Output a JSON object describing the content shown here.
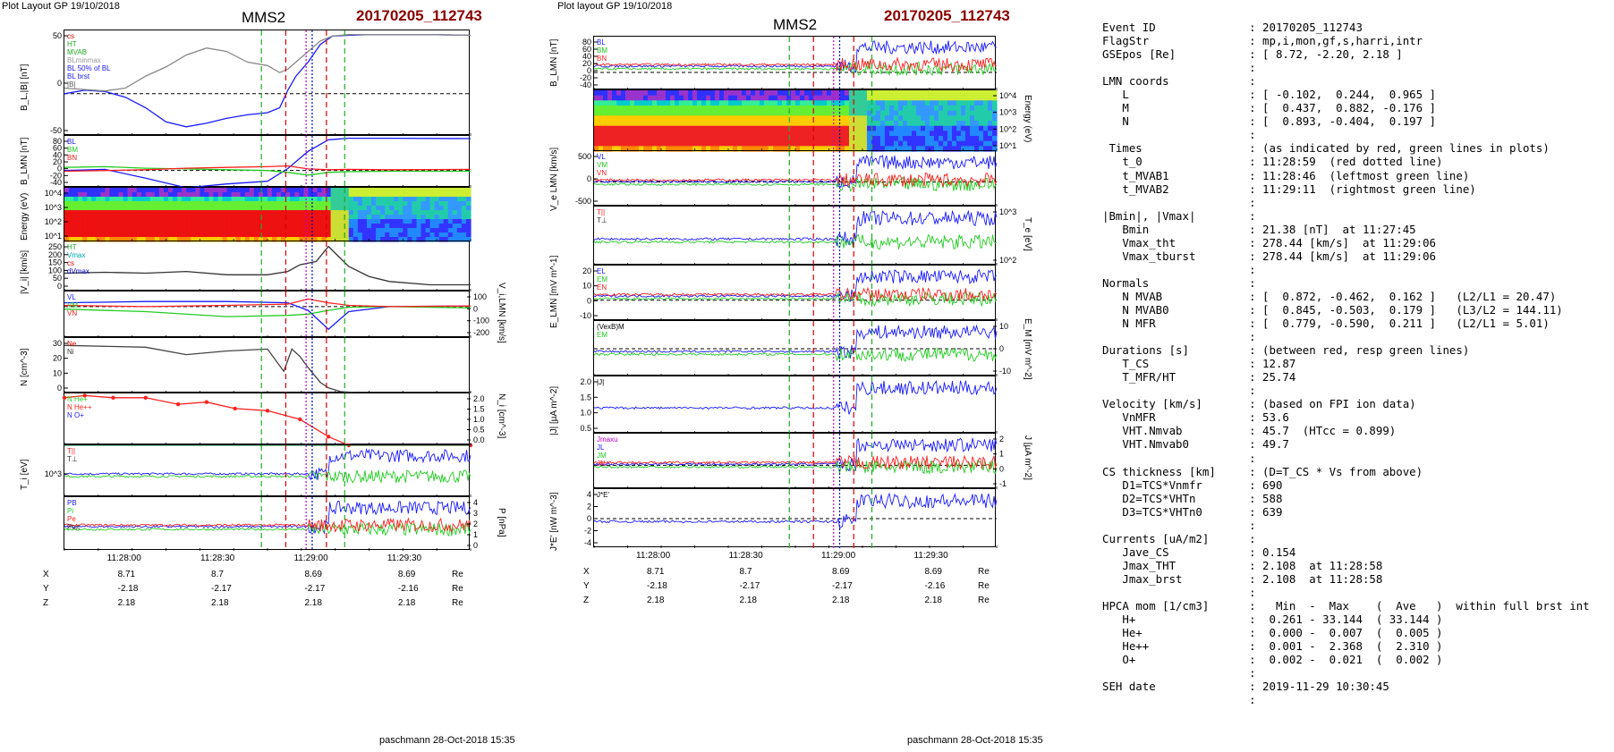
{
  "left": {
    "header": "Plot Layout GP 19/10/2018",
    "title": "MMS2",
    "event": "20170205_112743",
    "footer": "paschmann 28-Oct-2018 15:35",
    "xticks": [
      "11:28:00",
      "11:28:30",
      "11:29:00",
      "11:29:30"
    ],
    "ephem": {
      "rows": [
        {
          "label": "X",
          "values": [
            "8.71",
            "8.7",
            "8.69",
            "8.69"
          ],
          "unit": "Re"
        },
        {
          "label": "Y",
          "values": [
            "-2.18",
            "-2.17",
            "-2.17",
            "-2.16"
          ],
          "unit": "Re"
        },
        {
          "label": "Z",
          "values": [
            "2.18",
            "2.18",
            "2.18",
            "2.18"
          ],
          "unit": "Re"
        }
      ]
    }
  },
  "right": {
    "header": "Plot layout GP 19/10/2018",
    "title": "MMS2",
    "event": "20170205_112743",
    "footer": "paschmann 28-Oct-2018 15:35",
    "xticks": [
      "11:28:00",
      "11:28:30",
      "11:29:00",
      "11:29:30"
    ],
    "ephem": {
      "rows": [
        {
          "label": "X",
          "values": [
            "8.71",
            "8.7",
            "8.69",
            "8.69"
          ],
          "unit": "Re"
        },
        {
          "label": "Y",
          "values": [
            "-2.18",
            "-2.17",
            "-2.17",
            "-2.16"
          ],
          "unit": "Re"
        },
        {
          "label": "Z",
          "values": [
            "2.18",
            "2.18",
            "2.18",
            "2.18"
          ],
          "unit": "Re"
        }
      ]
    }
  },
  "chart_data": [
    {
      "type": "line",
      "panel": "left-1",
      "ylabel": "B_L,|B| [nT]",
      "ylim": [
        -60,
        90
      ],
      "yticks": [
        "50",
        "0",
        "-50"
      ],
      "legend": [
        "cs",
        "HT",
        "MVAB",
        "BLminmax",
        "BL 50% of BL",
        "BL brst",
        "|B|"
      ],
      "series": [
        {
          "name": "BL brst",
          "color": "#1a1aff",
          "x": [
            0,
            0.05,
            0.1,
            0.15,
            0.2,
            0.25,
            0.3,
            0.35,
            0.4,
            0.45,
            0.5,
            0.53,
            0.55,
            0.57,
            0.6,
            0.63,
            0.66,
            0.7,
            0.75,
            0.8,
            0.9,
            1.0
          ],
          "values": [
            0,
            5,
            3,
            -5,
            -20,
            -40,
            -47,
            -42,
            -35,
            -30,
            -27,
            -20,
            5,
            25,
            45,
            70,
            82,
            83,
            84,
            84,
            84,
            83
          ]
        },
        {
          "name": "|B|",
          "color": "#888888",
          "x": [
            0,
            0.05,
            0.1,
            0.15,
            0.2,
            0.25,
            0.3,
            0.35,
            0.4,
            0.45,
            0.5,
            0.53,
            0.55,
            0.57,
            0.6,
            0.63,
            0.66,
            0.7,
            0.75,
            0.8,
            0.9,
            1.0
          ],
          "values": [
            8,
            6,
            4,
            8,
            25,
            38,
            55,
            65,
            60,
            45,
            40,
            30,
            35,
            45,
            60,
            75,
            82,
            84,
            84,
            84,
            84,
            83
          ]
        }
      ]
    },
    {
      "type": "line",
      "panel": "left-2",
      "ylabel": "B_LMN [nT]",
      "ylim": [
        -45,
        90
      ],
      "yticks": [
        "80",
        "60",
        "40",
        "20",
        "0",
        "-20",
        "-40"
      ],
      "legend": [
        "BL",
        "BM",
        "BN"
      ],
      "series": [
        {
          "name": "BL",
          "color": "#1a1aff",
          "x": [
            0,
            0.1,
            0.2,
            0.3,
            0.4,
            0.5,
            0.55,
            0.6,
            0.65,
            0.7,
            0.8,
            1.0
          ],
          "values": [
            0,
            3,
            -20,
            -45,
            -35,
            -28,
            5,
            50,
            80,
            84,
            84,
            83
          ]
        },
        {
          "name": "BM",
          "color": "#22cc22",
          "x": [
            0,
            0.1,
            0.2,
            0.3,
            0.4,
            0.5,
            0.55,
            0.6,
            0.65,
            0.7,
            0.8,
            1.0
          ],
          "values": [
            8,
            10,
            6,
            4,
            2,
            0,
            -5,
            -12,
            -5,
            -3,
            -2,
            -2
          ]
        },
        {
          "name": "BN",
          "color": "#ff2020",
          "x": [
            0,
            0.1,
            0.2,
            0.3,
            0.4,
            0.5,
            0.55,
            0.6,
            0.65,
            0.7,
            0.8,
            1.0
          ],
          "values": [
            -2,
            0,
            2,
            6,
            8,
            10,
            12,
            4,
            2,
            3,
            2,
            3
          ]
        }
      ]
    },
    {
      "type": "heatmap",
      "panel": "left-3",
      "ylabel": "Energy (eV)",
      "yticks": [
        "10^4",
        "10^3",
        "10^2",
        "10^1"
      ]
    },
    {
      "type": "line",
      "panel": "left-4",
      "ylabel": "|V_i| [km/s]",
      "ylim": [
        0,
        300
      ],
      "yticks": [
        "250",
        "200",
        "150",
        "100",
        "50",
        "0"
      ],
      "legend": [
        "HT",
        "Vmax",
        "cs",
        "dVmax"
      ],
      "series": [
        {
          "name": "|Vi|",
          "color": "#333333",
          "x": [
            0,
            0.1,
            0.2,
            0.3,
            0.4,
            0.5,
            0.55,
            0.58,
            0.62,
            0.65,
            0.7,
            0.75,
            0.8,
            0.9,
            1.0
          ],
          "values": [
            110,
            115,
            110,
            120,
            100,
            100,
            120,
            160,
            180,
            270,
            150,
            90,
            60,
            40,
            40
          ]
        }
      ]
    },
    {
      "type": "line",
      "panel": "left-5",
      "ylabel": "V_i,LMN [km/s]",
      "ylim": [
        -250,
        120
      ],
      "yticks": [
        "100",
        "0",
        "-100",
        "-200"
      ],
      "legend": [
        "VL",
        "VM",
        "VN"
      ],
      "series": [
        {
          "name": "VL",
          "color": "#1a1aff",
          "x": [
            0,
            0.2,
            0.4,
            0.55,
            0.6,
            0.65,
            0.7,
            0.8,
            1.0
          ],
          "values": [
            30,
            40,
            40,
            30,
            -30,
            -180,
            -40,
            0,
            5
          ]
        },
        {
          "name": "VM",
          "color": "#22cc22",
          "x": [
            0,
            0.2,
            0.4,
            0.55,
            0.6,
            0.65,
            0.7,
            0.8,
            1.0
          ],
          "values": [
            -20,
            -40,
            -80,
            -70,
            -60,
            -30,
            -5,
            0,
            -10
          ]
        },
        {
          "name": "VN",
          "color": "#ff2020",
          "x": [
            0,
            0.2,
            0.4,
            0.55,
            0.6,
            0.65,
            0.7,
            0.8,
            1.0
          ],
          "values": [
            10,
            0,
            10,
            20,
            60,
            30,
            10,
            0,
            5
          ]
        }
      ]
    },
    {
      "type": "line",
      "panel": "left-6",
      "ylabel": "N [cm^-3]",
      "ylim": [
        0,
        30
      ],
      "yticks": [
        "30",
        "20",
        "10",
        "0"
      ],
      "legend": [
        "Ne",
        "Ni"
      ],
      "series": [
        {
          "name": "Ni",
          "color": "#444444",
          "x": [
            0,
            0.2,
            0.3,
            0.4,
            0.5,
            0.54,
            0.56,
            0.58,
            0.6,
            0.63,
            0.65,
            0.68,
            0.72,
            1.0
          ],
          "values": [
            26,
            25,
            21,
            23,
            24,
            12,
            24,
            20,
            14,
            6,
            3,
            1,
            0.5,
            0.5
          ]
        }
      ]
    },
    {
      "type": "line",
      "panel": "left-7",
      "ylabel": "N_i [cm^-3]",
      "ylim": [
        0,
        2.4
      ],
      "yticks": [
        "2.0",
        "1.5",
        "1.0",
        "0.5",
        "0.0"
      ],
      "legend": [
        "N He+",
        "N He++",
        "N O+"
      ],
      "series": [
        {
          "name": "N He++",
          "color": "#ff2020",
          "x": [
            0,
            0.05,
            0.12,
            0.2,
            0.28,
            0.35,
            0.42,
            0.5,
            0.58,
            0.65,
            0.7,
            1.0
          ],
          "values": [
            2.2,
            2.3,
            2.2,
            2.2,
            1.9,
            2.0,
            1.7,
            1.6,
            1.2,
            0.4,
            0,
            0
          ]
        },
        {
          "name": "N He+",
          "color": "#22cc22",
          "x": [
            0,
            1.0
          ],
          "values": [
            0.01,
            0.01
          ]
        },
        {
          "name": "N O+",
          "color": "#1a1aff",
          "x": [
            0,
            1.0
          ],
          "values": [
            0.02,
            0.02
          ]
        }
      ]
    },
    {
      "type": "line",
      "panel": "left-8",
      "ylabel": "T_i [eV]",
      "yticks": [
        "10^3"
      ],
      "legend": [
        "T||",
        "T⊥"
      ]
    },
    {
      "type": "line",
      "panel": "left-9",
      "ylabel": "P [nPa]",
      "ylim": [
        0,
        4
      ],
      "yticks": [
        "4",
        "3",
        "2",
        "1",
        "0"
      ],
      "legend": [
        "PB",
        "Pi",
        "Pe",
        "Ptot"
      ]
    },
    {
      "type": "line",
      "panel": "right-1",
      "ylabel": "B_LMN [nT]",
      "ylim": [
        -45,
        90
      ],
      "yticks": [
        "80",
        "60",
        "40",
        "20",
        "0",
        "-20",
        "-40"
      ],
      "legend": [
        "BL",
        "BM",
        "BN"
      ]
    },
    {
      "type": "heatmap",
      "panel": "right-2",
      "ylabel": "Energy (eV)",
      "yticks": [
        "10^4",
        "10^3",
        "10^2",
        "10^1"
      ]
    },
    {
      "type": "line",
      "panel": "right-3",
      "ylabel": "V_e LMN [km/s]",
      "ylim": [
        -800,
        1000
      ],
      "yticks": [
        "500",
        "0",
        "-500"
      ],
      "legend": [
        "VL",
        "VM",
        "VN"
      ]
    },
    {
      "type": "line",
      "panel": "right-4",
      "ylabel": "T_e [eV]",
      "yticks": [
        "10^3",
        "10^2"
      ],
      "legend": [
        "T||",
        "T⊥"
      ]
    },
    {
      "type": "line",
      "panel": "right-5",
      "ylabel": "E_LMN [mV m^-1]",
      "ylim": [
        -15,
        25
      ],
      "yticks": [
        "20",
        "10",
        "0",
        "-10"
      ],
      "legend": [
        "EL",
        "EM",
        "EN"
      ]
    },
    {
      "type": "line",
      "panel": "right-6",
      "ylabel": "E_M [mV m^-2]",
      "ylim": [
        -15,
        15
      ],
      "yticks": [
        "10",
        "0",
        "-10"
      ],
      "legend": [
        "(VexB)M",
        "EM"
      ]
    },
    {
      "type": "line",
      "panel": "right-7",
      "ylabel": "|J| [µA m^-2]",
      "ylim": [
        0,
        2.0
      ],
      "yticks": [
        "2.0",
        "1.5",
        "1.0",
        "0.5"
      ],
      "legend": [
        "|J|"
      ]
    },
    {
      "type": "line",
      "panel": "right-8",
      "ylabel": "J [µA m^-2]",
      "ylim": [
        -1.5,
        2
      ],
      "yticks": [
        "2",
        "1",
        "0",
        "-1"
      ],
      "legend": [
        "Jmaxu",
        "JL",
        "JM",
        "JN"
      ]
    },
    {
      "type": "line",
      "panel": "right-9",
      "ylabel": "J*E' [nW m^-3]",
      "ylim": [
        -5,
        5
      ],
      "yticks": [
        "4",
        "2",
        "0",
        "-2",
        "-4"
      ],
      "legend": [
        "J*E'"
      ]
    }
  ],
  "info_rows": [
    [
      "Event ID",
      ": 20170205_112743"
    ],
    [
      "FlagStr",
      ": mp,i,mon,gf,s,harri,intr"
    ],
    [
      "GSEpos [Re]",
      ": [ 8.72, -2.20, 2.18 ]"
    ],
    [
      "",
      ":"
    ],
    [
      "LMN coords",
      ":"
    ],
    [
      "   L",
      ": [ -0.102,  0.244,  0.965 ]"
    ],
    [
      "   M",
      ": [  0.437,  0.882, -0.176 ]"
    ],
    [
      "   N",
      ": [  0.893, -0.404,  0.197 ]"
    ],
    [
      "",
      ":"
    ],
    [
      " Times",
      ": (as indicated by red, green lines in plots)"
    ],
    [
      "   t_0",
      ": 11:28:59  (red dotted line)"
    ],
    [
      "   t_MVAB1",
      ": 11:28:46  (leftmost green line)"
    ],
    [
      "   t_MVAB2",
      ": 11:29:11  (rightmost green line)"
    ],
    [
      "",
      ":"
    ],
    [
      "|Bmin|, |Vmax|",
      ":"
    ],
    [
      "   Bmin",
      ": 21.38 [nT]  at 11:27:45"
    ],
    [
      "   Vmax_tht",
      ": 278.44 [km/s]  at 11:29:06"
    ],
    [
      "   Vmax_tburst",
      ": 278.44 [km/s]  at 11:29:06"
    ],
    [
      "",
      ":"
    ],
    [
      "Normals",
      ":"
    ],
    [
      "   N MVAB",
      ": [  0.872, -0.462,  0.162 ]   (L2/L1 = 20.47)"
    ],
    [
      "   N MVAB0",
      ": [  0.845, -0.503,  0.179 ]   (L3/L2 = 144.11)"
    ],
    [
      "   N MFR",
      ": [  0.779, -0.590,  0.211 ]   (L2/L1 = 5.01)"
    ],
    [
      "",
      ":"
    ],
    [
      "Durations [s]",
      ": (between red, resp green lines)"
    ],
    [
      "   T_CS",
      ": 12.87"
    ],
    [
      "   T_MFR/HT",
      ": 25.74"
    ],
    [
      "",
      ":"
    ],
    [
      "Velocity [km/s]",
      ": (based on FPI ion data)"
    ],
    [
      "   VnMFR",
      ": 53.6"
    ],
    [
      "   VHT.Nmvab",
      ": 45.7  (HTcc = 0.899)"
    ],
    [
      "   VHT.Nmvab0",
      ": 49.7"
    ],
    [
      "",
      ":"
    ],
    [
      "CS thickness [km]",
      ": (D=T_CS * Vs from above)"
    ],
    [
      "   D1=TCS*Vnmfr",
      ": 690"
    ],
    [
      "   D2=TCS*VHTn",
      ": 588"
    ],
    [
      "   D3=TCS*VHTn0",
      ": 639"
    ],
    [
      "",
      ":"
    ],
    [
      "Currents [uA/m2]",
      ":"
    ],
    [
      "   Jave_CS",
      ": 0.154"
    ],
    [
      "   Jmax_THT",
      ": 2.108  at 11:28:58"
    ],
    [
      "   Jmax_brst",
      ": 2.108  at 11:28:58"
    ],
    [
      "",
      ":"
    ],
    [
      "HPCA mom [1/cm3]",
      ":   Min  -  Max    (  Ave   )  within full brst int"
    ],
    [
      "   H+",
      ":  0.261 - 33.144  ( 33.144 )"
    ],
    [
      "   He+",
      ":  0.000 -  0.007  (  0.005 )"
    ],
    [
      "   He++",
      ":  0.001 -  2.368  (  2.310 )"
    ],
    [
      "   O+",
      ":  0.002 -  0.021  (  0.002 )"
    ],
    [
      "",
      ":"
    ],
    [
      "SEH date",
      ": 2019-11-29 10:30:45"
    ],
    [
      "",
      ":"
    ]
  ]
}
